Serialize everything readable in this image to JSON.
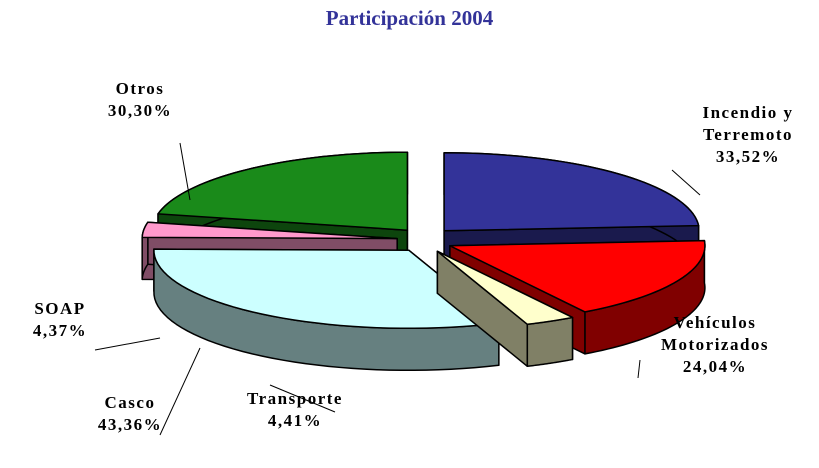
{
  "chart_data": {
    "type": "pie",
    "title": "Participación 2004",
    "categories": [
      "Incendio y Terremoto",
      "Vehículos Motorizados",
      "Transporte",
      "Casco",
      "SOAP",
      "Otros"
    ],
    "values": [
      33.52,
      24.04,
      4.41,
      43.36,
      4.37,
      30.3
    ],
    "value_labels": [
      "33,52%",
      "24,04%",
      "4,41%",
      "43,36%",
      "4,37%",
      "30,30%"
    ],
    "colors": [
      "#333399",
      "#ff0000",
      "#ffffcc",
      "#ccffff",
      "#ff99cc",
      "#1a8a1a"
    ]
  }
}
